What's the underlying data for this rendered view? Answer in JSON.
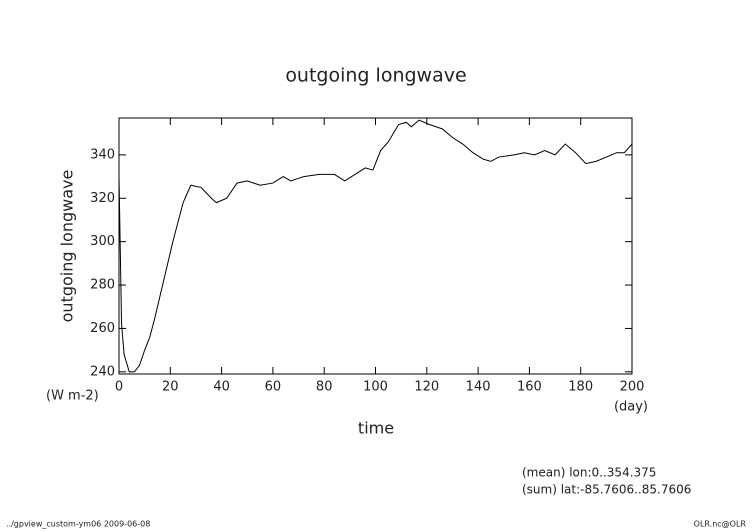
{
  "chart_data": {
    "type": "line",
    "title": "outgoing longwave",
    "ylabel": "outgoing longwave",
    "y_unit": "(W m-2)",
    "xlabel": "time",
    "x_unit": "(day)",
    "annotations": [
      "(mean) lon:0..354.375",
      "(sum) lat:-85.7606..85.7606"
    ],
    "footer_left": "../gpview_custom-ym06  2009-06-08",
    "footer_right": "OLR.nc@OLR",
    "x": [
      0,
      1,
      2,
      4,
      6,
      8,
      10,
      12,
      14,
      17,
      21,
      25,
      28,
      32,
      36,
      38,
      42,
      46,
      50,
      55,
      60,
      64,
      67,
      72,
      78,
      84,
      88,
      92,
      96,
      99,
      102,
      105,
      109,
      112,
      114,
      117,
      121,
      126,
      130,
      134,
      138,
      142,
      145,
      148,
      154,
      158,
      162,
      166,
      170,
      174,
      178,
      182,
      186,
      190,
      194,
      197,
      200
    ],
    "series": [
      {
        "color": "#000000",
        "values": [
          330,
          262,
          248,
          240,
          240,
          243,
          250,
          256,
          265,
          280,
          300,
          318,
          326,
          325,
          320,
          318,
          320,
          327,
          328,
          326,
          327,
          330,
          328,
          330,
          331,
          331,
          328,
          331,
          334,
          333,
          342,
          346,
          354,
          355,
          353,
          356,
          354,
          352,
          348,
          345,
          341,
          338,
          337,
          339,
          340,
          341,
          340,
          342,
          340,
          345,
          341,
          336,
          337,
          339,
          341,
          341,
          345
        ]
      }
    ],
    "xlim": [
      0,
      200
    ],
    "ylim": [
      239,
      357
    ],
    "xticks": [
      0,
      20,
      40,
      60,
      80,
      100,
      120,
      140,
      160,
      180,
      200
    ],
    "yticks": [
      240,
      260,
      280,
      300,
      320,
      340
    ]
  }
}
